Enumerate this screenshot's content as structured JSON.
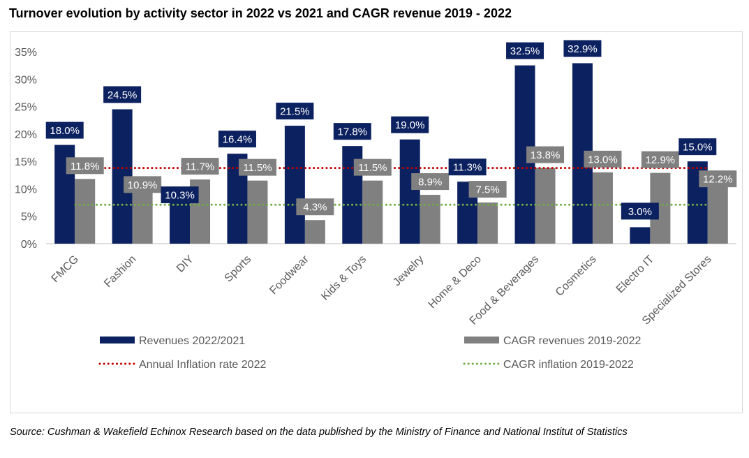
{
  "title": "Turnover evolution by activity sector in 2022 vs 2021 and CAGR revenue 2019 - 2022",
  "source": "Source: Cushman & Wakefield Echinox Research based on the data published by the Ministry of Finance and National Institut of Statistics",
  "chart_data": {
    "type": "bar",
    "categories": [
      "FMCG",
      "Fashion",
      "DIY",
      "Sports",
      "Foodwear",
      "Kids & Toys",
      "Jewelry",
      "Home & Deco",
      "Food & Beverages",
      "Cosmetics",
      "Electro IT",
      "Specialized Stores"
    ],
    "series": [
      {
        "name": "Revenues 2022/2021",
        "type": "bar",
        "color": "#0c2160",
        "values": [
          18.0,
          24.5,
          10.3,
          16.4,
          21.5,
          17.8,
          19.0,
          11.3,
          32.5,
          32.9,
          3.0,
          15.0
        ],
        "labels": [
          "18.0%",
          "24.5%",
          "10.3%",
          "16.4%",
          "21.5%",
          "17.8%",
          "19.0%",
          "11.3%",
          "32.5%",
          "32.9%",
          "3.0%",
          "15.0%"
        ]
      },
      {
        "name": "CAGR revenues 2019-2022",
        "type": "bar",
        "color": "#808080",
        "values": [
          11.8,
          10.9,
          11.7,
          11.5,
          4.3,
          11.5,
          8.9,
          7.5,
          13.8,
          13.0,
          12.9,
          12.2
        ],
        "labels": [
          "11.8%",
          "10.9%",
          "11.7%",
          "11.5%",
          "4.3%",
          "11.5%",
          "8.9%",
          "7.5%",
          "13.8%",
          "13.0%",
          "12.9%",
          "12.2%"
        ]
      },
      {
        "name": "Annual Inflation rate 2022",
        "type": "line",
        "style": "dotted",
        "color": "#c00000",
        "value": 13.8
      },
      {
        "name": "CAGR inflation 2019-2022",
        "type": "line",
        "style": "dotted",
        "color": "#70ad47",
        "value": 7.1
      }
    ],
    "yticks": [
      "0%",
      "5%",
      "10%",
      "15%",
      "20%",
      "25%",
      "30%",
      "35%"
    ],
    "ylim": [
      0,
      35
    ],
    "grid": false,
    "legend": "bottom"
  }
}
